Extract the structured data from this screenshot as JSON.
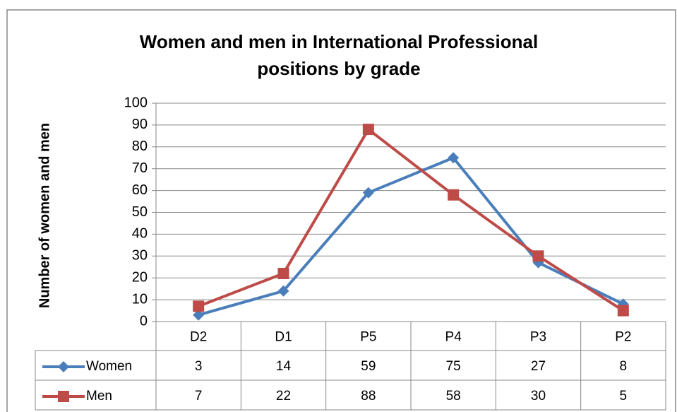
{
  "chart_data": {
    "type": "line",
    "title": "Women and men in International Professional positions by grade",
    "y_label": "Number of women and men",
    "categories": [
      "D2",
      "D1",
      "P5",
      "P4",
      "P3",
      "P2"
    ],
    "series": [
      {
        "name": "Women",
        "color": "#4a7ebb",
        "marker": "diamond",
        "values": [
          3,
          14,
          59,
          75,
          27,
          8
        ]
      },
      {
        "name": "Men",
        "color": "#be4b48",
        "marker": "square",
        "values": [
          7,
          22,
          88,
          58,
          30,
          5
        ]
      }
    ],
    "ylim": [
      0,
      100
    ],
    "yticks": [
      0,
      10,
      20,
      30,
      40,
      50,
      60,
      70,
      80,
      90,
      100
    ],
    "grid": true,
    "data_table": true
  }
}
